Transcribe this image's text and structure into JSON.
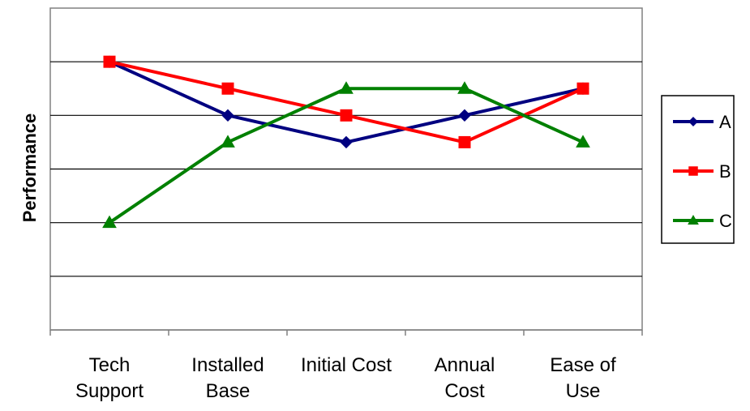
{
  "chart_data": {
    "type": "line",
    "title": "",
    "xlabel": "",
    "ylabel": "Performance",
    "categories": [
      [
        "Tech",
        "Support"
      ],
      [
        "Installed",
        "Base"
      ],
      [
        "Initial Cost"
      ],
      [
        "Annual",
        "Cost"
      ],
      [
        "Ease of",
        "Use"
      ]
    ],
    "ylim": [
      0,
      6
    ],
    "ytick_step": 1,
    "y_tick_labels_shown": false,
    "grid": true,
    "legend": "right",
    "series": [
      {
        "name": "A",
        "color": "#000080",
        "marker": "diamond",
        "values": [
          5,
          4,
          3.5,
          4,
          4.5
        ]
      },
      {
        "name": "B",
        "color": "#ff0000",
        "marker": "square",
        "values": [
          5,
          4.5,
          4,
          3.5,
          4.5
        ]
      },
      {
        "name": "C",
        "color": "#008000",
        "marker": "triangle",
        "values": [
          2,
          3.5,
          4.5,
          4.5,
          3.5
        ]
      }
    ]
  }
}
